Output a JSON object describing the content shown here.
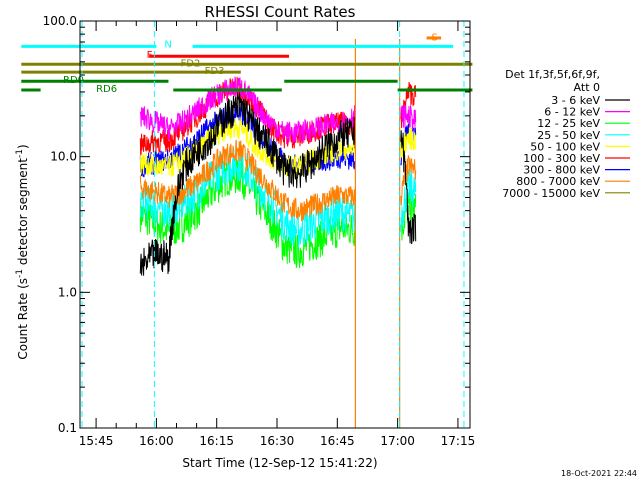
{
  "chart_data": {
    "type": "line",
    "title": "RHESSI Count Rates",
    "xlabel": "Start Time (12-Sep-12 15:41:22)",
    "ylabel_parts": {
      "a": "Count Rate (s",
      "sup1": "-1",
      "b": " detector segment",
      "sup2": "-1",
      "c": ")"
    },
    "y_scale": "log",
    "ylim": [
      0.1,
      100.0
    ],
    "y_ticks": [
      "0.1",
      "1.0",
      "10.0",
      "100.0"
    ],
    "x_ticks": [
      "15:45",
      "16:00",
      "16:15",
      "16:30",
      "16:45",
      "17:00",
      "17:15"
    ],
    "xlim_minutes": [
      15.41,
      17.31
    ],
    "legend_header": [
      "Det 1f,3f,5f,6f,9f,",
      "Att 0"
    ],
    "legend_position": "right",
    "series": [
      {
        "name": "3 - 6 keV",
        "color": "#000000",
        "base": [
          1.5,
          1.9,
          1.8,
          8.0,
          11.0,
          14.0,
          20.0,
          24.0,
          16.0,
          12.0,
          8.0,
          7.5,
          9.0,
          12.0,
          14.0,
          15.0,
          3.0,
          2.8
        ]
      },
      {
        "name": "6 - 12 keV",
        "color": "#ff00ff",
        "base": [
          20.0,
          18.0,
          16.0,
          18.0,
          22.0,
          27.0,
          31.0,
          33.0,
          24.0,
          18.0,
          15.0,
          15.0,
          16.0,
          17.0,
          18.0,
          20.0,
          20.0,
          18.0
        ]
      },
      {
        "name": "12 - 25 keV",
        "color": "#00ff00",
        "base": [
          3.8,
          3.2,
          2.8,
          3.2,
          4.0,
          5.5,
          7.0,
          7.2,
          5.0,
          3.5,
          2.2,
          2.0,
          2.3,
          2.6,
          3.0,
          2.9,
          4.3,
          4.0
        ]
      },
      {
        "name": "25 - 50 keV",
        "color": "#00ffff",
        "base": [
          4.8,
          4.3,
          4.0,
          4.5,
          5.5,
          7.0,
          8.5,
          9.0,
          6.5,
          4.8,
          3.3,
          2.8,
          3.2,
          3.6,
          3.9,
          3.5,
          6.0,
          5.5
        ]
      },
      {
        "name": "50 - 100 keV",
        "color": "#ffff00",
        "base": [
          9.0,
          8.5,
          8.3,
          9.5,
          11.0,
          14.0,
          16.0,
          16.5,
          12.0,
          10.0,
          8.5,
          8.5,
          9.5,
          10.5,
          11.5,
          11.0,
          14.0,
          13.0
        ]
      },
      {
        "name": "100 - 300 keV",
        "color": "#ff0000",
        "base": [
          12.0,
          13.0,
          13.0,
          16.0,
          20.0,
          26.0,
          31.0,
          32.0,
          24.0,
          17.0,
          14.0,
          14.0,
          15.5,
          17.0,
          17.5,
          17.0,
          30.0,
          28.0
        ]
      },
      {
        "name": "300 - 800 keV",
        "color": "#0000ff",
        "base": [
          8.5,
          9.0,
          9.5,
          11.0,
          13.5,
          17.0,
          20.0,
          21.0,
          16.0,
          12.0,
          9.0,
          8.5,
          9.0,
          9.5,
          10.0,
          9.5,
          16.0,
          15.0
        ]
      },
      {
        "name": "800 - 7000 keV",
        "color": "#ff7f00",
        "base": [
          6.0,
          5.5,
          5.0,
          5.5,
          6.5,
          8.5,
          10.5,
          11.0,
          8.0,
          6.0,
          4.5,
          4.0,
          4.3,
          4.8,
          5.2,
          5.0,
          8.5,
          8.0
        ]
      },
      {
        "name": "7000 - 15000 keV",
        "color": "#808000",
        "base": []
      }
    ],
    "flags": [
      {
        "label": "N",
        "color": "#00ffff",
        "y": 65.0,
        "segments": [
          [
            15.44,
            16.0
          ],
          [
            16.15,
            17.23
          ]
        ]
      },
      {
        "label": "F",
        "color": "#ff0000",
        "y": 55.0,
        "segments": [
          [
            15.97,
            16.55
          ]
        ]
      },
      {
        "label": "FD2",
        "color": "#808000",
        "y": 48.0,
        "segments": [
          [
            15.44,
            17.31
          ]
        ]
      },
      {
        "label": "FD3",
        "color": "#808000",
        "y": 42.0,
        "segments": [
          [
            15.44,
            16.35
          ]
        ]
      },
      {
        "label": "RD0",
        "color": "#008000",
        "y": 36.0,
        "segments": [
          [
            15.44,
            16.05
          ],
          [
            16.53,
            17.0
          ]
        ]
      },
      {
        "label": "RD6",
        "color": "#008000",
        "y": 31.0,
        "segments": [
          [
            15.44,
            15.52
          ],
          [
            16.07,
            16.52
          ],
          [
            17.0,
            17.31
          ]
        ]
      },
      {
        "label": "S",
        "color": "#ff7f00",
        "y": 75.0,
        "segments": [
          [
            17.12,
            17.18
          ]
        ]
      }
    ],
    "timestamp": "18-Oct-2021 22:44"
  }
}
